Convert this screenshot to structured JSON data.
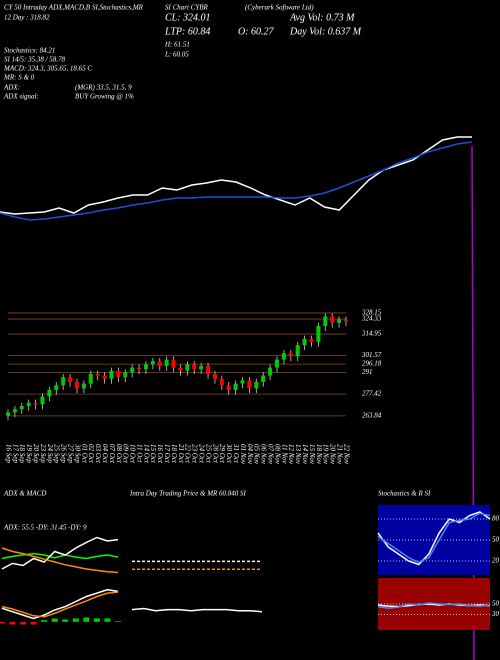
{
  "header": {
    "t1": "CY 50 Intraday ADX,MACD,B",
    "t2": "SI,Stochastics,MR",
    "t3": "SI Chart CYBR",
    "t4": "(Cyberark Software Ltd)",
    "t5": "12 Day : 318.82",
    "cl": "CL: 324.01",
    "avgvol": "Avg Vol: 0.73 M",
    "ltp": "LTP: 60.84",
    "open": "O: 60.27",
    "dayvol": "Day Vol: 0.637 M",
    "high": "H: 61.51",
    "low": "L: 60.05",
    "stoch": "Stochastics: 84.21",
    "si": "SI 14/5: 35.38 / 58.78",
    "macd": "MACD: 324.3, 305.65, 18.65 C",
    "mr": "MR: S & 0",
    "adx": "ADX:",
    "adxv": "(MGR) 33.5, 31.5, 9",
    "adxs": "ADX signal:",
    "adxsv": "BUY Growing @ 1%"
  },
  "chart_data": [
    {
      "type": "candlestick",
      "x": [
        "16 Sep",
        "17 Sep",
        "18 Sep",
        "19 Sep",
        "20 Sep",
        "23 Sep",
        "24 Sep",
        "25 Sep",
        "26 Sep",
        "27 Sep",
        "30 Sep",
        "01 Oct",
        "02 Oct",
        "03 Oct",
        "04 Oct",
        "07 Oct",
        "08 Oct",
        "09 Oct",
        "10 Oct",
        "11 Oct",
        "14 Oct",
        "15 Oct",
        "16 Oct",
        "17 Oct",
        "18 Oct",
        "21 Oct",
        "22 Oct",
        "23 Oct",
        "24 Oct",
        "25 Oct",
        "28 Oct",
        "29 Oct",
        "30 Oct",
        "31 Oct",
        "01 Nov",
        "04 Nov",
        "05 Nov",
        "06 Nov",
        "07 Nov",
        "08 Nov",
        "11 Nov",
        "12 Nov",
        "13 Nov",
        "14 Nov",
        "15 Nov",
        "18 Nov",
        "19 Nov",
        "20 Nov",
        "21 Nov",
        "22 Nov"
      ],
      "open": [
        264,
        266,
        268,
        270,
        272,
        271,
        276,
        280,
        283,
        288,
        285,
        281,
        284,
        290,
        289,
        287,
        292,
        288,
        291,
        294,
        293,
        296,
        298,
        295,
        299,
        294,
        292,
        296,
        293,
        295,
        290,
        287,
        283,
        280,
        284,
        286,
        281,
        285,
        289,
        294,
        299,
        303,
        301,
        308,
        312,
        310,
        320,
        326,
        322,
        324
      ],
      "high": [
        268,
        270,
        272,
        274,
        274,
        278,
        282,
        285,
        290,
        290,
        287,
        286,
        292,
        292,
        291,
        294,
        294,
        293,
        296,
        296,
        298,
        300,
        300,
        301,
        301,
        296,
        298,
        298,
        297,
        297,
        292,
        289,
        285,
        286,
        288,
        288,
        287,
        291,
        296,
        301,
        305,
        305,
        310,
        314,
        314,
        322,
        328,
        328,
        326,
        326
      ],
      "low": [
        261,
        263,
        265,
        267,
        268,
        268,
        273,
        277,
        280,
        282,
        278,
        278,
        281,
        286,
        284,
        284,
        285,
        285,
        288,
        290,
        290,
        293,
        292,
        292,
        291,
        289,
        289,
        290,
        290,
        287,
        284,
        280,
        277,
        277,
        281,
        278,
        278,
        282,
        286,
        291,
        296,
        298,
        298,
        305,
        307,
        307,
        317,
        319,
        319,
        320
      ],
      "close": [
        266,
        268,
        270,
        272,
        271,
        276,
        280,
        283,
        288,
        285,
        281,
        284,
        290,
        289,
        287,
        292,
        288,
        291,
        294,
        293,
        296,
        298,
        295,
        299,
        294,
        292,
        296,
        293,
        295,
        290,
        287,
        283,
        280,
        284,
        286,
        281,
        285,
        289,
        294,
        299,
        303,
        301,
        308,
        312,
        310,
        320,
        326,
        322,
        324,
        323
      ],
      "up_color": "#00cc00",
      "down_color": "#ff0000",
      "level_color": "#8b4513",
      "ylim": [
        250,
        335
      ],
      "yticks": [
        328.15,
        324.33,
        314.95,
        301.57,
        296.18,
        291,
        277.42,
        263.84
      ]
    },
    {
      "type": "line",
      "ylim": [
        0,
        110
      ],
      "series": [
        {
          "color": "#ffffff",
          "values": [
            28,
            26,
            27,
            28,
            32,
            27,
            35,
            38,
            42,
            45,
            45,
            52,
            50,
            55,
            57,
            60,
            58,
            52,
            45,
            40,
            35,
            42,
            33,
            30,
            45,
            60,
            70,
            75,
            80,
            90,
            100,
            103,
            103
          ]
        },
        {
          "color": "#1f4fd8",
          "values": [
            27,
            23,
            20,
            21,
            23,
            25,
            27,
            30,
            32,
            35,
            37,
            40,
            42,
            42,
            43,
            43,
            43,
            43,
            43,
            42,
            42,
            44,
            47,
            52,
            58,
            64,
            70,
            77,
            82,
            88,
            92,
            96,
            98
          ]
        }
      ]
    },
    {
      "type": "line",
      "title": "ADX & MACD",
      "annotation": "ADX: 55.5 -DY: 31.45 -DY: 9",
      "ylim": [
        0,
        100
      ],
      "series": [
        {
          "color": "#00ff00",
          "values": [
            45,
            48,
            50,
            52,
            50,
            46,
            50,
            47,
            45,
            48,
            50,
            47
          ]
        },
        {
          "color": "#ffffff",
          "values": [
            30,
            38,
            35,
            45,
            40,
            55,
            50,
            60,
            68,
            75,
            70,
            72
          ]
        },
        {
          "color": "#ff8c00",
          "values": [
            60,
            55,
            52,
            48,
            44,
            40,
            36,
            33,
            30,
            28,
            26,
            25
          ]
        }
      ]
    },
    {
      "type": "macd",
      "ylim": [
        -30,
        100
      ],
      "series": [
        {
          "color": "#ffffff",
          "values": [
            40,
            30,
            20,
            10,
            20,
            35,
            45,
            60,
            75,
            85,
            95,
            90
          ]
        },
        {
          "color": "#ff8c00",
          "values": [
            45,
            38,
            28,
            18,
            15,
            25,
            38,
            50,
            62,
            75,
            85,
            88
          ]
        }
      ],
      "histogram": [
        -5,
        -8,
        -8,
        -8,
        5,
        10,
        7,
        10,
        13,
        10,
        10,
        2
      ],
      "up_color": "#00cc00",
      "down_color": "#ff0000"
    },
    {
      "type": "line",
      "title": "Intra Day Trading Price & MR 60.840 SI",
      "ylim": [
        0,
        100
      ],
      "series": [
        {
          "color": "#ffffff",
          "dash": true,
          "values": [
            63,
            63,
            63,
            63,
            63,
            63,
            63,
            63,
            63,
            63,
            63,
            63
          ]
        },
        {
          "color": "#ff8c00",
          "dash": true,
          "values": [
            56,
            56,
            56,
            56,
            56,
            56,
            56,
            56,
            56,
            56,
            56,
            56
          ]
        },
        {
          "color": "#ffffff",
          "values": [
            20,
            21,
            19,
            20,
            20,
            19,
            20,
            20,
            20,
            19,
            19,
            18
          ]
        }
      ]
    },
    {
      "type": "line",
      "title": "Stochastics & R SI",
      "background": "#0000a0",
      "ylim": [
        0,
        100
      ],
      "yticks": [
        80,
        50,
        20
      ],
      "series": [
        {
          "color": "#ffffff",
          "values": [
            60,
            40,
            30,
            20,
            15,
            30,
            60,
            80,
            75,
            85,
            90,
            80
          ]
        },
        {
          "color": "#3a8dff",
          "values": [
            55,
            45,
            35,
            25,
            18,
            25,
            50,
            75,
            78,
            80,
            88,
            85
          ]
        }
      ]
    },
    {
      "type": "line",
      "background": "#990000",
      "ylim": [
        0,
        100
      ],
      "yticks": [
        50,
        30
      ],
      "series": [
        {
          "color": "#ffffff",
          "values": [
            48,
            46,
            45,
            47,
            49,
            50,
            48,
            50,
            48,
            47,
            48,
            47
          ]
        },
        {
          "color": "#3a8dff",
          "values": [
            45,
            42,
            44,
            50,
            48,
            52,
            50,
            49,
            50,
            47,
            46,
            48
          ]
        }
      ]
    }
  ]
}
